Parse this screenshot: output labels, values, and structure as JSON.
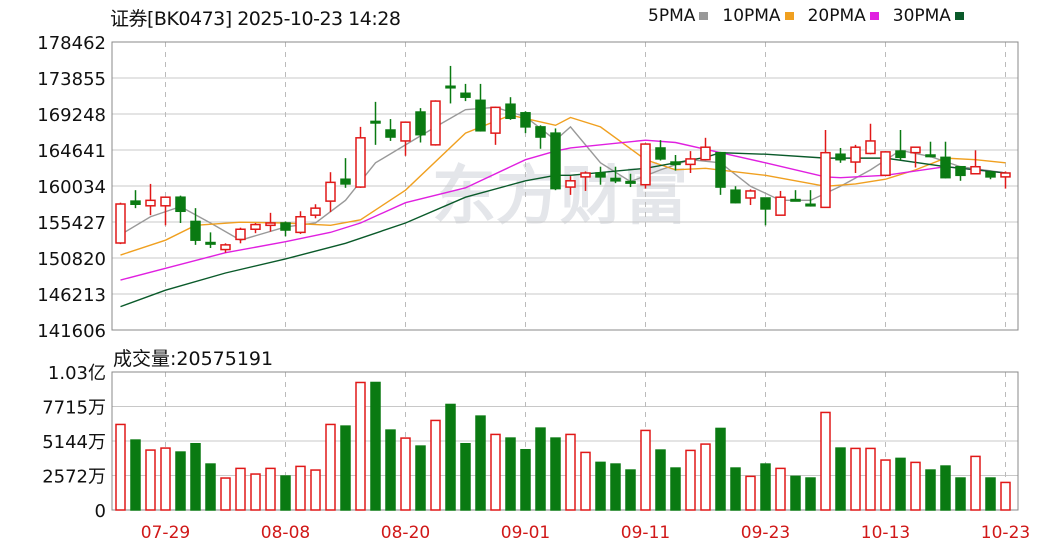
{
  "header": {
    "title": "证券[BK0473] 2025-10-23 14:28"
  },
  "legend": [
    {
      "label": "5PMA",
      "color": "#999999"
    },
    {
      "label": "10PMA",
      "color": "#f0a020"
    },
    {
      "label": "20PMA",
      "color": "#e020e0"
    },
    {
      "label": "30PMA",
      "color": "#0a5a2a"
    }
  ],
  "volume_header": {
    "label": "成交量:20575191"
  },
  "watermark": "东方财富",
  "colors": {
    "up": "#e01818",
    "down": "#0a7a12",
    "grid": "#c8c8c8",
    "date_label": "#d01818"
  },
  "chart_data": [
    {
      "type": "candlestick",
      "title": "证券[BK0473] 2025-10-23 14:28",
      "ylim": [
        141606,
        178462
      ],
      "y_ticks": [
        "178462",
        "173855",
        "169248",
        "164641",
        "160034",
        "155427",
        "150820",
        "146213",
        "141606"
      ],
      "x_tick_labels": [
        "07-29",
        "08-08",
        "08-20",
        "09-01",
        "09-11",
        "09-23",
        "10-13",
        "10-23"
      ],
      "grid": true,
      "legend_position": "top-right",
      "dates": [
        "07-24",
        "07-25",
        "07-28",
        "07-29",
        "07-30",
        "07-31",
        "08-01",
        "08-04",
        "08-05",
        "08-06",
        "08-07",
        "08-08",
        "08-11",
        "08-12",
        "08-13",
        "08-14",
        "08-15",
        "08-18",
        "08-19",
        "08-20",
        "08-21",
        "08-22",
        "08-25",
        "08-26",
        "08-27",
        "08-28",
        "08-29",
        "09-01",
        "09-02",
        "09-03",
        "09-04",
        "09-05",
        "09-08",
        "09-09",
        "09-10",
        "09-11",
        "09-12",
        "09-15",
        "09-16",
        "09-17",
        "09-18",
        "09-19",
        "09-22",
        "09-23",
        "09-24",
        "09-25",
        "09-26",
        "09-29",
        "09-30",
        "10-09",
        "10-10",
        "10-13",
        "10-14",
        "10-15",
        "10-16",
        "10-17",
        "10-20",
        "10-21",
        "10-22",
        "10-23"
      ],
      "ohlc": [
        [
          152740,
          157900,
          152600,
          157730
        ],
        [
          158100,
          159500,
          157200,
          157700
        ],
        [
          157500,
          160300,
          156300,
          158200
        ],
        [
          157500,
          158700,
          155000,
          158600
        ],
        [
          158600,
          158800,
          155300,
          156800
        ],
        [
          155500,
          157200,
          152500,
          153100
        ],
        [
          152800,
          154100,
          152100,
          152600
        ],
        [
          151900,
          152700,
          151500,
          152500
        ],
        [
          153200,
          154700,
          152700,
          154500
        ],
        [
          154500,
          155300,
          154000,
          155100
        ],
        [
          155000,
          156600,
          154200,
          155300
        ],
        [
          155300,
          155500,
          153600,
          154400
        ],
        [
          154100,
          156800,
          153900,
          156100
        ],
        [
          156300,
          157700,
          155900,
          157200
        ],
        [
          158100,
          161800,
          156700,
          160500
        ],
        [
          160900,
          163600,
          159800,
          160300
        ],
        [
          159900,
          167600,
          159800,
          166200
        ],
        [
          168300,
          170800,
          165300,
          168100
        ],
        [
          167200,
          168600,
          165800,
          166300
        ],
        [
          165800,
          168300,
          163900,
          168200
        ],
        [
          169500,
          170000,
          165600,
          166600
        ],
        [
          165300,
          171000,
          165200,
          170900
        ],
        [
          172800,
          175400,
          170600,
          172600
        ],
        [
          171900,
          173100,
          170900,
          171400
        ],
        [
          171000,
          173100,
          167000,
          167100
        ],
        [
          166800,
          170200,
          165300,
          170100
        ],
        [
          170500,
          171400,
          168500,
          168700
        ],
        [
          169400,
          169600,
          166800,
          167600
        ],
        [
          167600,
          167800,
          164800,
          166300
        ],
        [
          166800,
          167400,
          159500,
          159700
        ],
        [
          159900,
          161300,
          158900,
          160700
        ],
        [
          161200,
          161900,
          159400,
          161700
        ],
        [
          161700,
          162500,
          160200,
          161200
        ],
        [
          161000,
          162500,
          160400,
          160700
        ],
        [
          160600,
          161600,
          159900,
          160400
        ],
        [
          160200,
          165500,
          159700,
          165400
        ],
        [
          164900,
          165900,
          163300,
          163500
        ],
        [
          163100,
          164000,
          162000,
          162800
        ],
        [
          162800,
          164500,
          161700,
          163500
        ],
        [
          163400,
          166200,
          163300,
          165000
        ],
        [
          164300,
          164400,
          158900,
          159900
        ],
        [
          159500,
          160000,
          157800,
          157900
        ],
        [
          158500,
          159600,
          157600,
          159400
        ],
        [
          158500,
          158500,
          155000,
          157100
        ],
        [
          156300,
          159400,
          156300,
          158600
        ],
        [
          158300,
          159500,
          158100,
          158200
        ],
        [
          157700,
          159500,
          157400,
          157500
        ],
        [
          157300,
          167200,
          157300,
          164300
        ],
        [
          164100,
          164900,
          163000,
          163400
        ],
        [
          163100,
          165300,
          161700,
          165000
        ],
        [
          164200,
          168000,
          164100,
          165800
        ],
        [
          161400,
          164500,
          161400,
          164400
        ],
        [
          164500,
          167200,
          163300,
          163700
        ],
        [
          164300,
          165000,
          162400,
          165000
        ],
        [
          164000,
          165700,
          163700,
          163800
        ],
        [
          163700,
          165700,
          161000,
          161100
        ],
        [
          162500,
          162600,
          160700,
          161400
        ],
        [
          161600,
          164600,
          161600,
          162500
        ],
        [
          161800,
          162000,
          160900,
          161200
        ],
        [
          161200,
          161900,
          159700,
          161700
        ]
      ],
      "series": [
        {
          "name": "5PMA",
          "points": [
            [
              "07-24",
              153800
            ],
            [
              "07-28",
              156100
            ],
            [
              "07-30",
              157400
            ],
            [
              "08-01",
              155300
            ],
            [
              "08-05",
              153100
            ],
            [
              "08-08",
              154800
            ],
            [
              "08-12",
              155300
            ],
            [
              "08-14",
              158200
            ],
            [
              "08-18",
              163000
            ],
            [
              "08-20",
              165300
            ],
            [
              "08-22",
              167600
            ],
            [
              "08-26",
              169800
            ],
            [
              "08-28",
              170100
            ],
            [
              "09-01",
              168900
            ],
            [
              "09-03",
              165900
            ],
            [
              "09-04",
              167600
            ],
            [
              "09-08",
              163000
            ],
            [
              "09-10",
              160600
            ],
            [
              "09-12",
              162100
            ],
            [
              "09-16",
              163400
            ],
            [
              "09-18",
              163000
            ],
            [
              "09-22",
              160000
            ],
            [
              "09-24",
              158200
            ],
            [
              "09-26",
              158200
            ],
            [
              "09-30",
              160000
            ],
            [
              "10-10",
              162100
            ],
            [
              "10-14",
              164600
            ],
            [
              "10-16",
              163800
            ],
            [
              "10-20",
              162500
            ],
            [
              "10-23",
              161700
            ]
          ]
        },
        {
          "name": "10PMA",
          "points": [
            [
              "07-24",
              151200
            ],
            [
              "07-29",
              153100
            ],
            [
              "07-31",
              155000
            ],
            [
              "08-05",
              155400
            ],
            [
              "08-08",
              155300
            ],
            [
              "08-13",
              155000
            ],
            [
              "08-15",
              155700
            ],
            [
              "08-20",
              159500
            ],
            [
              "08-26",
              166800
            ],
            [
              "08-29",
              169100
            ],
            [
              "09-03",
              167800
            ],
            [
              "09-04",
              168800
            ],
            [
              "09-08",
              167600
            ],
            [
              "09-11",
              163400
            ],
            [
              "09-15",
              162100
            ],
            [
              "09-17",
              162300
            ],
            [
              "09-23",
              161400
            ],
            [
              "09-29",
              160000
            ],
            [
              "10-09",
              160300
            ],
            [
              "10-13",
              160900
            ],
            [
              "10-15",
              162100
            ],
            [
              "10-17",
              163600
            ],
            [
              "10-21",
              163400
            ],
            [
              "10-23",
              163000
            ]
          ]
        },
        {
          "name": "20PMA",
          "points": [
            [
              "07-24",
              148000
            ],
            [
              "07-29",
              149500
            ],
            [
              "08-04",
              151500
            ],
            [
              "08-08",
              152900
            ],
            [
              "08-13",
              154100
            ],
            [
              "08-15",
              155300
            ],
            [
              "08-20",
              157900
            ],
            [
              "08-26",
              159800
            ],
            [
              "09-01",
              163400
            ],
            [
              "09-03",
              164500
            ],
            [
              "09-04",
              164900
            ],
            [
              "09-11",
              165900
            ],
            [
              "09-15",
              165600
            ],
            [
              "09-18",
              164300
            ],
            [
              "09-23",
              163000
            ],
            [
              "09-29",
              161200
            ],
            [
              "09-30",
              161100
            ],
            [
              "10-13",
              161400
            ],
            [
              "10-17",
              162500
            ],
            [
              "10-23",
              161700
            ]
          ]
        },
        {
          "name": "30PMA",
          "points": [
            [
              "07-24",
              144600
            ],
            [
              "07-29",
              146700
            ],
            [
              "08-04",
              148900
            ],
            [
              "08-08",
              150700
            ],
            [
              "08-14",
              152700
            ],
            [
              "08-20",
              155300
            ],
            [
              "08-26",
              158600
            ],
            [
              "09-01",
              160700
            ],
            [
              "09-03",
              161400
            ],
            [
              "09-04",
              161400
            ],
            [
              "09-11",
              162300
            ],
            [
              "09-17",
              163700
            ],
            [
              "09-18",
              164300
            ],
            [
              "09-23",
              164100
            ],
            [
              "09-29",
              163600
            ],
            [
              "10-13",
              163600
            ],
            [
              "10-17",
              162500
            ],
            [
              "10-23",
              161700
            ]
          ]
        }
      ]
    },
    {
      "type": "bar",
      "title": "成交量:20575191",
      "ylim": [
        0,
        103000000
      ],
      "y_ticks": [
        "1.03亿",
        "7715万",
        "5144万",
        "2572万",
        "0"
      ],
      "x_tick_labels": [
        "07-29",
        "08-08",
        "08-20",
        "09-01",
        "09-11",
        "09-23",
        "10-13",
        "10-23"
      ],
      "values": [
        63860000,
        52190000,
        44730000,
        46220000,
        43240000,
        49450000,
        34290000,
        23860000,
        31060000,
        26840000,
        31060000,
        25350000,
        32550000,
        29820000,
        63860000,
        62620000,
        95180000,
        95180000,
        59640000,
        53680000,
        47710000,
        66850000,
        78770000,
        49450000,
        70080000,
        56410000,
        53680000,
        44980000,
        61130000,
        53680000,
        56410000,
        42990000,
        35540000,
        34290000,
        29820000,
        59390000,
        44730000,
        31310000,
        44480000,
        49200000,
        60880000,
        31310000,
        25100000,
        34290000,
        31060000,
        25100000,
        23860000,
        72810000,
        46220000,
        45970000,
        45970000,
        37280000,
        38520000,
        35540000,
        29820000,
        32800000,
        23860000,
        40010000,
        23860000,
        20575191
      ]
    }
  ]
}
